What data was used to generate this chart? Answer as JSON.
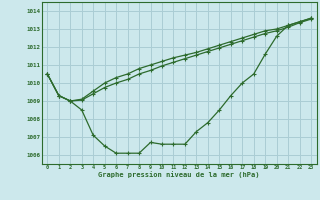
{
  "xlabel": "Graphe pression niveau de la mer (hPa)",
  "background_color": "#cce8ec",
  "grid_color": "#aacdd4",
  "line_color": "#2d6b2d",
  "ylim": [
    1005.5,
    1014.5
  ],
  "xlim": [
    -0.5,
    23.5
  ],
  "yticks": [
    1006,
    1007,
    1008,
    1009,
    1010,
    1011,
    1012,
    1013,
    1014
  ],
  "xticks": [
    0,
    1,
    2,
    3,
    4,
    5,
    6,
    7,
    8,
    9,
    10,
    11,
    12,
    13,
    14,
    15,
    16,
    17,
    18,
    19,
    20,
    21,
    22,
    23
  ],
  "series1": [
    1010.5,
    1009.3,
    1009.0,
    1008.5,
    1007.1,
    1006.5,
    1006.1,
    1006.1,
    1006.1,
    1006.7,
    1006.6,
    1006.6,
    1006.6,
    1007.3,
    1007.8,
    1008.5,
    1009.3,
    1010.0,
    1010.5,
    1011.6,
    1012.6,
    1013.2,
    1013.4,
    1013.6
  ],
  "series2": [
    1010.5,
    1009.3,
    1009.0,
    1009.05,
    1009.4,
    1009.75,
    1010.0,
    1010.2,
    1010.5,
    1010.7,
    1010.95,
    1011.15,
    1011.35,
    1011.55,
    1011.75,
    1011.95,
    1012.15,
    1012.35,
    1012.55,
    1012.75,
    1012.9,
    1013.1,
    1013.35,
    1013.55
  ],
  "series3": [
    1010.5,
    1009.3,
    1009.0,
    1009.1,
    1009.55,
    1010.0,
    1010.3,
    1010.5,
    1010.8,
    1011.0,
    1011.2,
    1011.4,
    1011.55,
    1011.7,
    1011.9,
    1012.1,
    1012.3,
    1012.5,
    1012.7,
    1012.9,
    1013.0,
    1013.2,
    1013.4,
    1013.6
  ]
}
